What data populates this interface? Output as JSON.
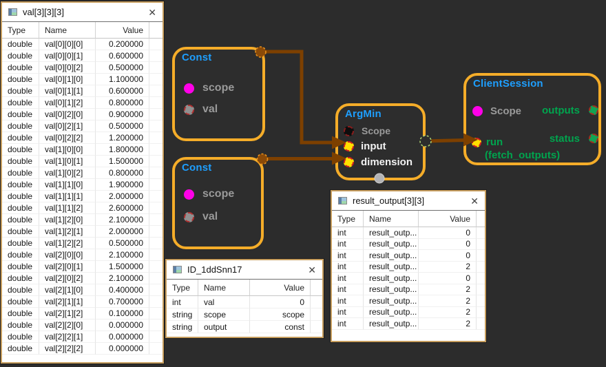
{
  "colors": {
    "background": "#2c2c2c",
    "node_border": "#f5ad29",
    "node_title_blue": "#1e9fff",
    "wire_brown": "#7d4000",
    "label_gray": "#9a9a9a",
    "label_green": "#00a44e",
    "port_magenta": "#ff00e8",
    "port_yellow": "#ffe000",
    "port_green": "#12a454",
    "window_border": "#c79e5e"
  },
  "icons": {
    "close": "✕",
    "window_icon": "table-grid-icon"
  },
  "windows": {
    "val": {
      "title": "val[3][3][3]",
      "columns": [
        "Type",
        "Name",
        "Value"
      ],
      "rows": [
        [
          "double",
          "val[0][0][0]",
          "0.200000"
        ],
        [
          "double",
          "val[0][0][1]",
          "0.600000"
        ],
        [
          "double",
          "val[0][0][2]",
          "0.500000"
        ],
        [
          "double",
          "val[0][1][0]",
          "1.100000"
        ],
        [
          "double",
          "val[0][1][1]",
          "0.600000"
        ],
        [
          "double",
          "val[0][1][2]",
          "0.800000"
        ],
        [
          "double",
          "val[0][2][0]",
          "0.900000"
        ],
        [
          "double",
          "val[0][2][1]",
          "0.500000"
        ],
        [
          "double",
          "val[0][2][2]",
          "1.200000"
        ],
        [
          "double",
          "val[1][0][0]",
          "1.800000"
        ],
        [
          "double",
          "val[1][0][1]",
          "1.500000"
        ],
        [
          "double",
          "val[1][0][2]",
          "0.800000"
        ],
        [
          "double",
          "val[1][1][0]",
          "1.900000"
        ],
        [
          "double",
          "val[1][1][1]",
          "2.000000"
        ],
        [
          "double",
          "val[1][1][2]",
          "2.600000"
        ],
        [
          "double",
          "val[1][2][0]",
          "2.100000"
        ],
        [
          "double",
          "val[1][2][1]",
          "2.000000"
        ],
        [
          "double",
          "val[1][2][2]",
          "0.500000"
        ],
        [
          "double",
          "val[2][0][0]",
          "2.100000"
        ],
        [
          "double",
          "val[2][0][1]",
          "1.500000"
        ],
        [
          "double",
          "val[2][0][2]",
          "2.100000"
        ],
        [
          "double",
          "val[2][1][0]",
          "0.400000"
        ],
        [
          "double",
          "val[2][1][1]",
          "0.700000"
        ],
        [
          "double",
          "val[2][1][2]",
          "0.100000"
        ],
        [
          "double",
          "val[2][2][0]",
          "0.000000"
        ],
        [
          "double",
          "val[2][2][1]",
          "0.000000"
        ],
        [
          "double",
          "val[2][2][2]",
          "0.000000"
        ]
      ]
    },
    "id": {
      "title": "ID_1ddSnn17",
      "columns": [
        "Type",
        "Name",
        "Value"
      ],
      "rows": [
        [
          "int",
          "val",
          "0"
        ],
        [
          "string",
          "scope",
          "scope"
        ],
        [
          "string",
          "output",
          "const"
        ]
      ]
    },
    "result": {
      "title": "result_output[3][3]",
      "columns": [
        "Type",
        "Name",
        "Value"
      ],
      "rows": [
        [
          "int",
          "result_outp...",
          "0"
        ],
        [
          "int",
          "result_outp...",
          "0"
        ],
        [
          "int",
          "result_outp...",
          "0"
        ],
        [
          "int",
          "result_outp...",
          "2"
        ],
        [
          "int",
          "result_outp...",
          "0"
        ],
        [
          "int",
          "result_outp...",
          "2"
        ],
        [
          "int",
          "result_outp...",
          "2"
        ],
        [
          "int",
          "result_outp...",
          "2"
        ],
        [
          "int",
          "result_outp...",
          "2"
        ]
      ]
    }
  },
  "nodes": {
    "const1": {
      "title": "Const",
      "ports": {
        "scope": "scope",
        "val": "val"
      }
    },
    "const2": {
      "title": "Const",
      "ports": {
        "scope": "scope",
        "val": "val"
      }
    },
    "argmin": {
      "title": "ArgMin",
      "ports": {
        "scope": "Scope",
        "input": "input",
        "dimension": "dimension"
      }
    },
    "client_session": {
      "title": "ClientSession",
      "ports": {
        "scope": "Scope",
        "run": "run",
        "run_sub": "(fetch_outputs)",
        "outputs": "outputs",
        "status": "status"
      }
    }
  }
}
